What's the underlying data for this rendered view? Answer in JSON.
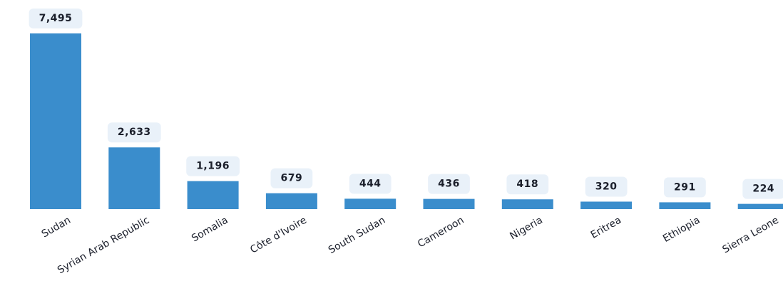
{
  "chart_data": {
    "type": "bar",
    "categories": [
      "Sudan",
      "Syrian Arab Republic",
      "Somalia",
      "Côte d'Ivoire",
      "South Sudan",
      "Cameroon",
      "Nigeria",
      "Eritrea",
      "Ethiopia",
      "Sierra Leone"
    ],
    "values": [
      7495,
      2633,
      1196,
      679,
      444,
      436,
      418,
      320,
      291,
      224
    ],
    "value_labels": [
      "7,495",
      "2,633",
      "1,196",
      "679",
      "444",
      "436",
      "418",
      "320",
      "291",
      "224"
    ],
    "color": "#3a8dcc"
  }
}
